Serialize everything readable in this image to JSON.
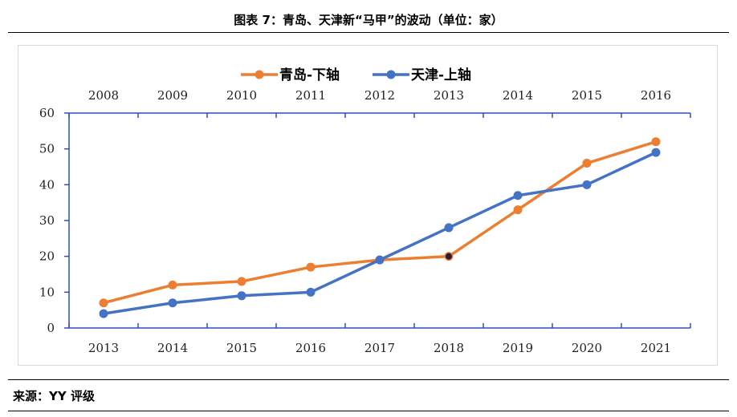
{
  "header": {
    "title": "图表 7：青岛、天津新“马甲”的波动（单位：家）"
  },
  "footer": {
    "source": "来源：YY 评级"
  },
  "colors": {
    "qingdao": "#ED7D31",
    "tianjin": "#4472C4",
    "axis": "#2F4FB7"
  },
  "chart_data": {
    "type": "line",
    "title": "",
    "ylim": [
      0,
      60
    ],
    "yticks": [
      0,
      10,
      20,
      30,
      40,
      50,
      60
    ],
    "legend_position": "top",
    "grid": false,
    "series": [
      {
        "name": "青岛-下轴",
        "axis": "bottom",
        "x": [
          "2013",
          "2014",
          "2015",
          "2016",
          "2017",
          "2018",
          "2019",
          "2020",
          "2021"
        ],
        "values": [
          7,
          12,
          13,
          17,
          19,
          20,
          33,
          46,
          52
        ]
      },
      {
        "name": "天津-上轴",
        "axis": "top",
        "x": [
          "2008",
          "2009",
          "2010",
          "2011",
          "2012",
          "2013",
          "2014",
          "2015",
          "2016"
        ],
        "values": [
          4,
          7,
          9,
          10,
          19,
          28,
          37,
          40,
          49
        ]
      }
    ],
    "x_bottom": [
      "2013",
      "2014",
      "2015",
      "2016",
      "2017",
      "2018",
      "2019",
      "2020",
      "2021"
    ],
    "x_top": [
      "2008",
      "2009",
      "2010",
      "2011",
      "2012",
      "2013",
      "2014",
      "2015",
      "2016"
    ]
  }
}
